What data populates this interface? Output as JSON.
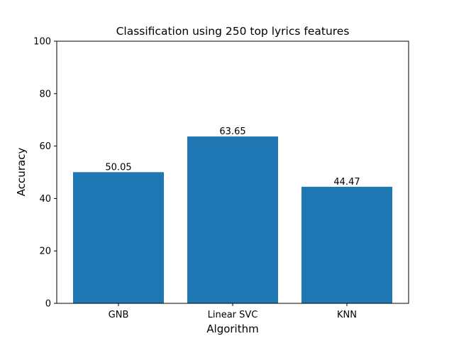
{
  "chart_data": {
    "type": "bar",
    "title": "Classification using 250 top lyrics features",
    "xlabel": "Algorithm",
    "ylabel": "Accuracy",
    "categories": [
      "GNB",
      "Linear SVC",
      "KNN"
    ],
    "values": [
      50.05,
      63.65,
      44.47
    ],
    "data_labels": [
      "50.05",
      "63.65",
      "44.47"
    ],
    "ylim": [
      0,
      100
    ],
    "yticks": [
      0,
      20,
      40,
      60,
      80,
      100
    ],
    "ytick_labels": [
      "0",
      "20",
      "40",
      "60",
      "80",
      "100"
    ],
    "bar_color": "#1f77b4",
    "grid": false,
    "legend": "none"
  }
}
